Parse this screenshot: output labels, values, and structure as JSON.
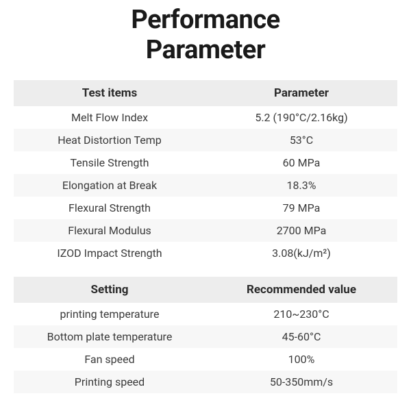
{
  "title_line1": "Performance",
  "title_line2": "Parameter",
  "styles": {
    "background_color": "#ffffff",
    "header_bg": "#ededed",
    "row_alt_bg": "#f7f7f7",
    "row_base_bg": "#ffffff",
    "title_color": "#1a1a1a",
    "text_color": "#2a2a2a",
    "title_fontsize_pt": 28,
    "header_fontsize_pt": 13,
    "cell_fontsize_pt": 12,
    "col_widths_pct": [
      50,
      50
    ]
  },
  "table1": {
    "type": "table",
    "columns": [
      "Test items",
      "Parameter"
    ],
    "rows": [
      [
        "Melt Flow Index",
        "5.2 (190°C/2.16kg)"
      ],
      [
        "Heat Distortion Temp",
        "53°C"
      ],
      [
        "Tensile Strength",
        "60 MPa"
      ],
      [
        "Elongation at Break",
        "18.3%"
      ],
      [
        "Flexural Strength",
        "79 MPa"
      ],
      [
        "Flexural Modulus",
        "2700 MPa"
      ],
      [
        "IZOD Impact Strength",
        "3.08(kJ/m²)"
      ]
    ]
  },
  "table2": {
    "type": "table",
    "columns": [
      "Setting",
      "Recommended value"
    ],
    "rows": [
      [
        "printing temperature",
        "210~230°C"
      ],
      [
        "Bottom plate temperature",
        "45-60°C"
      ],
      [
        "Fan speed",
        "100%"
      ],
      [
        "Printing speed",
        "50-350mm/s"
      ]
    ]
  }
}
